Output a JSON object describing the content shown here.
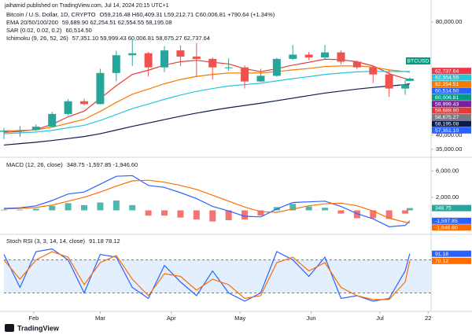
{
  "header": {
    "byline": "jaihamid published on TradingView.com, Jul 14, 2024 20:15 UTC+1"
  },
  "footer": {
    "brand": "TradingView"
  },
  "chart_data": [
    {
      "type": "candlestick",
      "title": "Bitcoin / U.S. Dollar, 1D, CRYPTO",
      "legend_lines": [
        {
          "label": "Bitcoin / U.S. Dollar, 1D, CRYPTO",
          "values": "O59,216.48 H60,409.31 L59,212.71 C60,006.81 +790.64 (+1.34%)",
          "color": "#089981"
        },
        {
          "label": "EMA 20/50/100/200",
          "values": "59,689.90 62,254.51 62,554.55 58,195.08",
          "color": "#e0522f"
        },
        {
          "label": "SAR (0.02, 0.02, 0.2)",
          "values": "60,514.50",
          "color": "#2962ff"
        },
        {
          "label": "Ichimoku (9, 26, 52, 26)",
          "values": "57,351.10 59,999.43 60,006.81 58,675.27 62,737.64",
          "color": "#2962ff"
        }
      ],
      "x": [
        19,
        26,
        33,
        40,
        47,
        54,
        61,
        68,
        75,
        82,
        89,
        96,
        103,
        110,
        117,
        124,
        131,
        138,
        145,
        152,
        159,
        166,
        173,
        180,
        187,
        194,
        196
      ],
      "open": [
        41200,
        41600,
        41800,
        43000,
        47500,
        52000,
        51000,
        62000,
        68300,
        69000,
        64000,
        70000,
        67800,
        67000,
        64000,
        64000,
        59000,
        61000,
        67000,
        68500,
        67500,
        69300,
        66000,
        64000,
        61500,
        56500,
        59216.48
      ],
      "high": [
        42500,
        43200,
        43800,
        48200,
        52800,
        52900,
        63500,
        69900,
        73800,
        69500,
        71500,
        71800,
        72700,
        67500,
        67200,
        64700,
        63500,
        67400,
        71900,
        69500,
        71900,
        70000,
        66400,
        64500,
        63000,
        59500,
        60409.31
      ],
      "low": [
        38600,
        39400,
        41500,
        42700,
        47000,
        50500,
        50900,
        59100,
        64500,
        60800,
        62300,
        64500,
        60600,
        59700,
        62800,
        56500,
        58800,
        60700,
        66600,
        66600,
        67100,
        65100,
        63400,
        58500,
        53500,
        54300,
        59212.71
      ],
      "close": [
        41600,
        41800,
        43000,
        47500,
        52000,
        51000,
        62000,
        68300,
        69000,
        64000,
        70000,
        67800,
        67000,
        64000,
        64000,
        59000,
        61000,
        67000,
        68500,
        67500,
        69300,
        66000,
        64000,
        61500,
        56500,
        57900,
        60006.81
      ],
      "up_color": "#26a69a",
      "down_color": "#ef5350",
      "series": [
        {
          "color": "#e53935",
          "values": [
            41000,
            41300,
            42000,
            43800,
            46500,
            48500,
            53000,
            57500,
            61500,
            63000,
            64800,
            66000,
            66500,
            65800,
            65200,
            63500,
            62500,
            63500,
            64800,
            65800,
            66900,
            66700,
            66000,
            64500,
            61800,
            60000,
            59689.9
          ]
        },
        {
          "color": "#f57c00",
          "values": [
            41500,
            41600,
            41900,
            42800,
            44200,
            45600,
            48400,
            51600,
            54500,
            56300,
            58200,
            59700,
            60800,
            61500,
            62000,
            62000,
            62000,
            62500,
            63100,
            63600,
            64300,
            64500,
            64500,
            64100,
            63100,
            62500,
            62254.51
          ]
        },
        {
          "color": "#26c6da",
          "values": [
            40500,
            40800,
            41100,
            41700,
            42600,
            43500,
            45200,
            47300,
            49400,
            51000,
            52700,
            54200,
            55500,
            56500,
            57400,
            57900,
            58400,
            59200,
            60000,
            60700,
            61500,
            62000,
            62400,
            62600,
            62500,
            62550,
            62554.55
          ]
        },
        {
          "color": "#0d1b4c",
          "values": [
            36500,
            37000,
            37500,
            38100,
            38800,
            39500,
            40500,
            41800,
            43100,
            44300,
            45500,
            46700,
            47800,
            48800,
            49700,
            50500,
            51300,
            52200,
            53100,
            54000,
            54900,
            55600,
            56300,
            56900,
            57400,
            57900,
            58195.08
          ]
        }
      ],
      "symbol_tag": {
        "label": "BTCUSD",
        "color": "#089981"
      },
      "price_tags": [
        {
          "value": 62737.64,
          "label": "62,737.64",
          "color": "#f23645"
        },
        {
          "value": 62554.55,
          "label": "62,554.55",
          "color": "#26c6da"
        },
        {
          "value": 62254.51,
          "label": "62,254.51",
          "color": "#f57c00"
        },
        {
          "value": 60514.5,
          "label": "60,514.50",
          "color": "#2962ff"
        },
        {
          "value": 60006.81,
          "label": "60,006.81",
          "color": "#089981"
        },
        {
          "value": 59999.43,
          "label": "59,999.43",
          "color": "#7b1fa2"
        },
        {
          "value": 59689.9,
          "label": "59,689.90",
          "color": "#e53935"
        },
        {
          "value": 58675.27,
          "label": "58,675.27",
          "color": "#787b86"
        },
        {
          "value": 58195.08,
          "label": "58,195.08",
          "color": "#0d1b4c"
        },
        {
          "value": 57351.1,
          "label": "57,351.10",
          "color": "#2962ff"
        }
      ],
      "xlim": [
        19,
        205.3
      ],
      "ylim": [
        33000,
        82000
      ],
      "yticks": [
        {
          "value": 35000,
          "label": "35,000.00"
        },
        {
          "value": 40000,
          "label": "40,000.00"
        },
        {
          "value": 80000,
          "label": "80,000.00"
        }
      ]
    },
    {
      "type": "macd",
      "legend_lines": [
        {
          "label": "MACD (12, 26, close)",
          "values": "348.75 -1,597.85 -1,946.60",
          "color": "#2962ff"
        }
      ],
      "x": [
        19,
        26,
        33,
        40,
        47,
        54,
        61,
        68,
        75,
        82,
        89,
        96,
        103,
        110,
        117,
        124,
        131,
        138,
        145,
        152,
        159,
        166,
        173,
        180,
        187,
        194,
        196
      ],
      "histogram": [
        100,
        100,
        250,
        700,
        1100,
        800,
        1200,
        1500,
        800,
        -800,
        -800,
        -1100,
        -1400,
        -1700,
        -1500,
        -1400,
        -800,
        500,
        1000,
        600,
        400,
        -500,
        -1200,
        -1200,
        -1300,
        -500,
        348.75
      ],
      "up_color": "#26a69a",
      "down_color": "#ef5350",
      "series": [
        {
          "color": "#2962ff",
          "values": [
            300,
            400,
            700,
            1500,
            2500,
            2800,
            4000,
            5200,
            5300,
            3800,
            3500,
            2700,
            1800,
            600,
            -100,
            -900,
            -1000,
            200,
            1200,
            1300,
            1400,
            600,
            -500,
            -1300,
            -2500,
            -2300,
            -1597.85
          ]
        },
        {
          "color": "#ff6d00",
          "values": [
            200,
            300,
            450,
            800,
            1400,
            2000,
            2800,
            3700,
            4500,
            4600,
            4300,
            3800,
            3200,
            2300,
            1400,
            500,
            -200,
            -300,
            200,
            700,
            1000,
            1100,
            700,
            -100,
            -1200,
            -1800,
            -1946.6
          ]
        }
      ],
      "price_tags": [
        {
          "value": 348.75,
          "label": "348.75",
          "color": "#26a69a"
        },
        {
          "value": -1597.85,
          "label": "-1,597.85",
          "color": "#2962ff"
        },
        {
          "value": -1946.6,
          "label": "-1,946.60",
          "color": "#ff6d00"
        }
      ],
      "xlim": [
        19,
        205.3
      ],
      "ylim": [
        -3300,
        7500
      ],
      "yticks": [
        {
          "value": 2000,
          "label": "2,000.00"
        },
        {
          "value": 6000,
          "label": "6,000.00"
        }
      ]
    },
    {
      "type": "stoch",
      "legend_lines": [
        {
          "label": "Stoch RSI (3, 3, 14, 14, close)",
          "values": "91.18 78.12",
          "color": "#2962ff"
        }
      ],
      "x": [
        19,
        26,
        33,
        40,
        47,
        54,
        61,
        68,
        75,
        82,
        89,
        96,
        103,
        110,
        117,
        124,
        131,
        138,
        145,
        152,
        159,
        166,
        173,
        180,
        187,
        194,
        196
      ],
      "series": [
        {
          "color": "#2962ff",
          "values": [
            90,
            30,
            95,
            100,
            80,
            20,
            90,
            85,
            30,
            10,
            70,
            40,
            15,
            60,
            20,
            5,
            20,
            95,
            80,
            50,
            85,
            10,
            15,
            5,
            10,
            60,
            91.18
          ]
        },
        {
          "color": "#ff6d00",
          "values": [
            80,
            45,
            80,
            95,
            85,
            35,
            75,
            88,
            45,
            15,
            55,
            50,
            25,
            45,
            35,
            10,
            15,
            75,
            85,
            60,
            75,
            30,
            15,
            8,
            8,
            40,
            78.12
          ]
        }
      ],
      "bands": [
        20,
        80
      ],
      "price_tags": [
        {
          "value": 91.18,
          "label": "91.18",
          "color": "#2962ff"
        },
        {
          "value": 78.12,
          "label": "78.12",
          "color": "#ff6d00"
        }
      ],
      "xlim": [
        19,
        205.3
      ],
      "ylim": [
        -5,
        105
      ],
      "xticks": [
        {
          "value": 32,
          "label": "Feb"
        },
        {
          "value": 61,
          "label": "Mar"
        },
        {
          "value": 92,
          "label": "Apr"
        },
        {
          "value": 122,
          "label": "May"
        },
        {
          "value": 153,
          "label": "Jun"
        },
        {
          "value": 183,
          "label": "Jul"
        },
        {
          "value": 204,
          "label": "22"
        }
      ]
    }
  ]
}
